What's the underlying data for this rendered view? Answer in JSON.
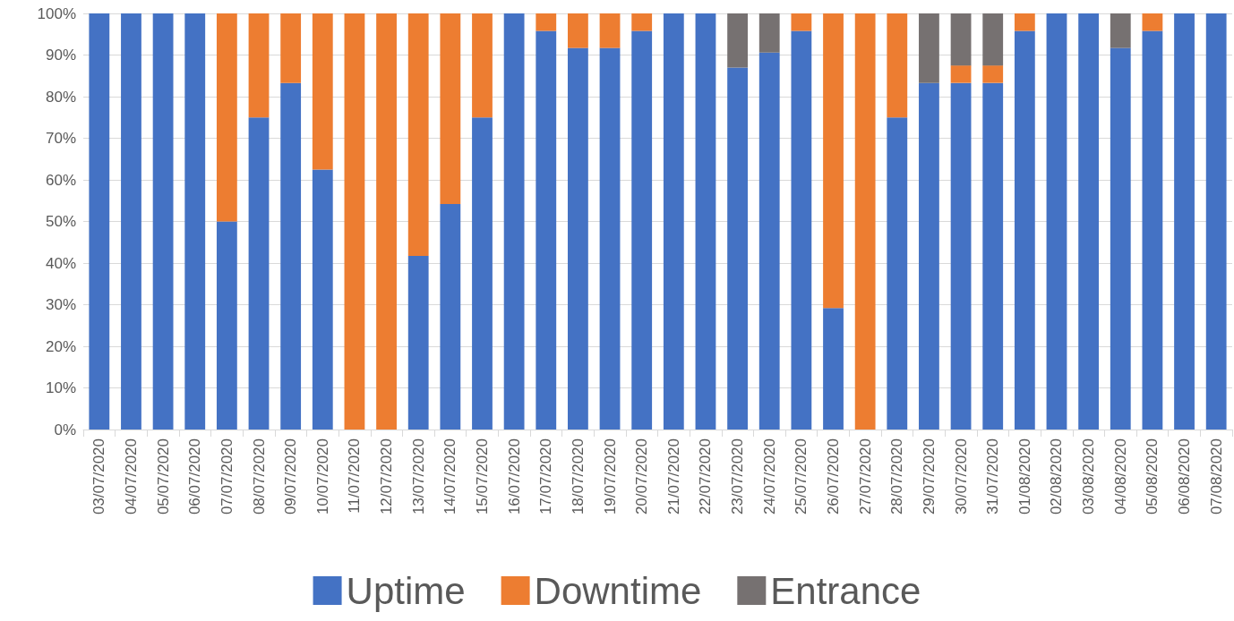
{
  "chart_data": {
    "type": "bar",
    "stacked": true,
    "categories": [
      "03/07/2020",
      "04/07/2020",
      "05/07/2020",
      "06/07/2020",
      "07/07/2020",
      "08/07/2020",
      "09/07/2020",
      "10/07/2020",
      "11/07/2020",
      "12/07/2020",
      "13/07/2020",
      "14/07/2020",
      "15/07/2020",
      "16/07/2020",
      "17/07/2020",
      "18/07/2020",
      "19/07/2020",
      "20/07/2020",
      "21/07/2020",
      "22/07/2020",
      "23/07/2020",
      "24/07/2020",
      "25/07/2020",
      "26/07/2020",
      "27/07/2020",
      "28/07/2020",
      "29/07/2020",
      "30/07/2020",
      "31/07/2020",
      "01/08/2020",
      "02/08/2020",
      "03/08/2020",
      "04/08/2020",
      "05/08/2020",
      "06/08/2020",
      "07/08/2020"
    ],
    "series": [
      {
        "name": "Uptime",
        "color": "#4472c4",
        "values": [
          100,
          100,
          100,
          100,
          50,
          75,
          83.3,
          62.5,
          0,
          0,
          41.7,
          54.2,
          75,
          100,
          95.8,
          91.7,
          91.7,
          95.8,
          100,
          100,
          87,
          90.6,
          95.8,
          29.2,
          0,
          75,
          83.3,
          83.3,
          83.3,
          95.8,
          100,
          100,
          91.7,
          95.8,
          100,
          100
        ]
      },
      {
        "name": "Downtime",
        "color": "#ed7d31",
        "values": [
          0,
          0,
          0,
          0,
          50,
          25,
          16.7,
          37.5,
          100,
          100,
          58.3,
          45.8,
          25,
          0,
          4.2,
          8.3,
          8.3,
          4.2,
          0,
          0,
          0,
          0,
          4.2,
          70.8,
          100,
          25,
          0,
          4.2,
          4.2,
          4.2,
          0,
          0,
          0,
          4.2,
          0,
          0
        ]
      },
      {
        "name": "Entrance",
        "color": "#767171",
        "values": [
          0,
          0,
          0,
          0,
          0,
          0,
          0,
          0,
          0,
          0,
          0,
          0,
          0,
          0,
          0,
          0,
          0,
          0,
          0,
          0,
          13,
          9.4,
          0,
          0,
          0,
          0,
          16.7,
          12.5,
          12.5,
          0,
          0,
          0,
          8.3,
          0,
          0,
          0
        ]
      }
    ],
    "ylim": [
      0,
      100
    ],
    "yticks": [
      {
        "value": 0,
        "label": "0%"
      },
      {
        "value": 10,
        "label": "10%"
      },
      {
        "value": 20,
        "label": "20%"
      },
      {
        "value": 30,
        "label": "30%"
      },
      {
        "value": 40,
        "label": "40%"
      },
      {
        "value": 50,
        "label": "50%"
      },
      {
        "value": 60,
        "label": "60%"
      },
      {
        "value": 70,
        "label": "70%"
      },
      {
        "value": 80,
        "label": "80%"
      },
      {
        "value": 90,
        "label": "90%"
      },
      {
        "value": 100,
        "label": "100%"
      }
    ],
    "grid": "y",
    "legend": "bottom"
  }
}
